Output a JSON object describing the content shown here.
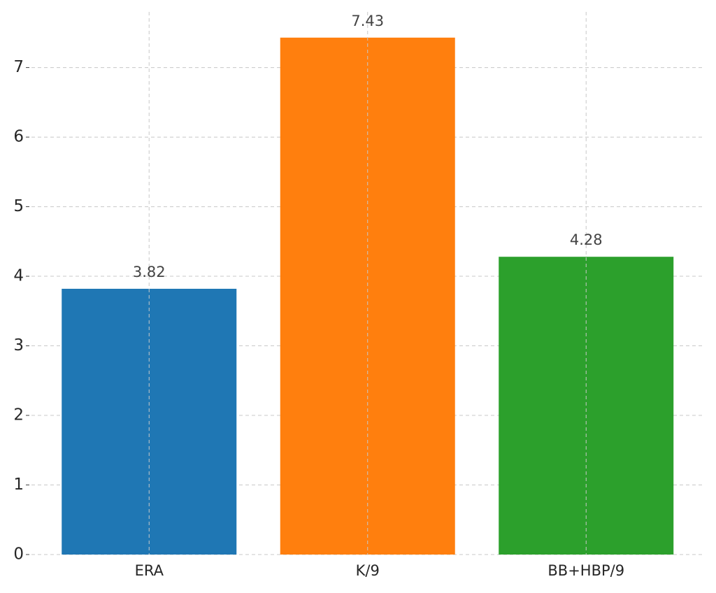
{
  "chart_data": {
    "type": "bar",
    "categories": [
      "ERA",
      "K/9",
      "BB+HBP/9"
    ],
    "values": [
      3.82,
      7.43,
      4.28
    ],
    "colors": [
      "#1f77b4",
      "#ff7f0e",
      "#2ca02c"
    ],
    "ylim": [
      0,
      7.8
    ],
    "yticks": [
      0,
      1,
      2,
      3,
      4,
      5,
      6,
      7
    ],
    "grid": true
  }
}
